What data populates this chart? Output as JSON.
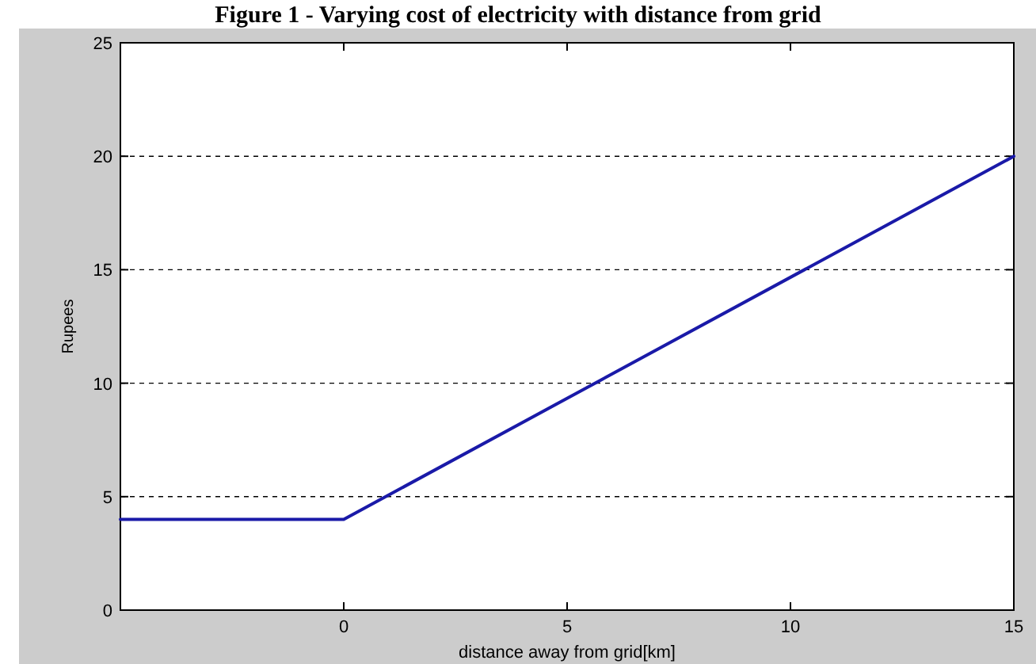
{
  "chart_data": {
    "type": "line",
    "title": "Figure 1 - Varying cost of electricity with distance from grid",
    "xlabel": "distance away from grid[km]",
    "ylabel": "Rupees",
    "x": [
      -5,
      0,
      15
    ],
    "series": [
      {
        "color": "#1a1aa8",
        "values": [
          4,
          4,
          20
        ]
      }
    ],
    "xlim": [
      -5,
      15
    ],
    "xticks": [
      0,
      5,
      10,
      15
    ],
    "ylim": [
      0,
      25
    ],
    "yticks": [
      0,
      5,
      10,
      15,
      20,
      25
    ],
    "grid": "y",
    "line_style": "solid",
    "marker": "none"
  }
}
